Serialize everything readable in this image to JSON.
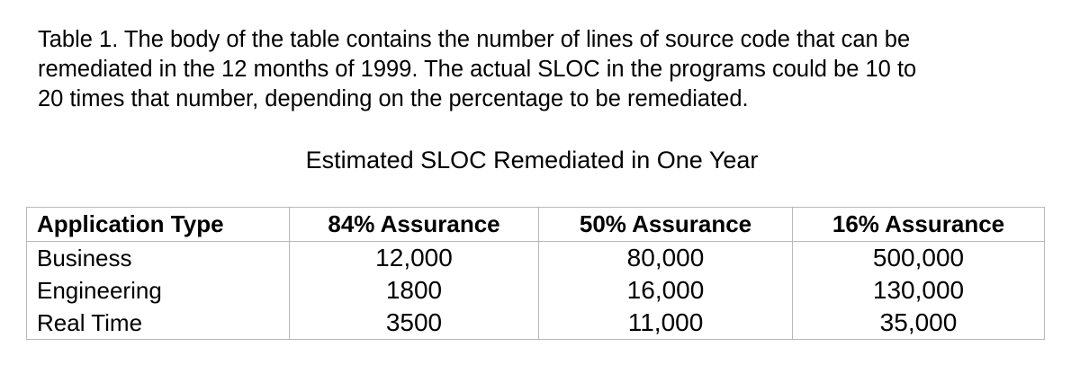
{
  "caption": {
    "lines": [
      "Table 1. The body of the table contains the number of lines of source code that can be",
      "remediated in the 12 months of 1999. The actual SLOC in the programs could be 10 to",
      "20 times that number, depending on the percentage to be remediated."
    ]
  },
  "table_title": "Estimated SLOC Remediated in One Year",
  "table": {
    "headers": [
      "Application Type",
      "84% Assurance",
      "50% Assurance",
      "16% Assurance"
    ],
    "rows": [
      [
        "Business",
        "12,000",
        "80,000",
        "500,000"
      ],
      [
        "Engineering",
        "1800",
        "16,000",
        "130,000"
      ],
      [
        "Real Time",
        "3500",
        "11,000",
        "35,000"
      ]
    ]
  }
}
